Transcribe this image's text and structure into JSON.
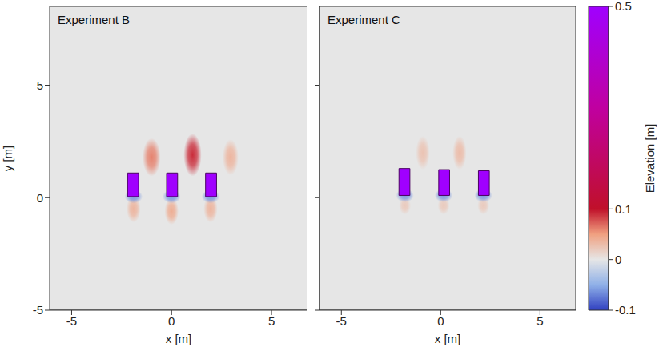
{
  "chart_data": [
    {
      "type": "heatmap",
      "title": "Experiment B",
      "x_label": "x [m]",
      "y_label": "y [m]",
      "xlim": [
        -6.1,
        6.8
      ],
      "ylim": [
        -5,
        8.5
      ],
      "xticks": [
        -5,
        0,
        5
      ],
      "yticks": [
        -5,
        0,
        5
      ],
      "base_elevation": 0,
      "structures": [
        {
          "x": [
            -2.2,
            -1.65
          ],
          "y": [
            0.05,
            1.1
          ],
          "elevation": 0.5
        },
        {
          "x": [
            -0.25,
            0.3
          ],
          "y": [
            0.05,
            1.1
          ],
          "elevation": 0.5
        },
        {
          "x": [
            1.7,
            2.25
          ],
          "y": [
            0.05,
            1.1
          ],
          "elevation": 0.5
        }
      ],
      "features": [
        {
          "x": -1.0,
          "y": 1.8,
          "rx": 0.45,
          "ry": 0.85,
          "elevation": 0.06
        },
        {
          "x": 1.05,
          "y": 1.9,
          "rx": 0.45,
          "ry": 0.95,
          "elevation": 0.09
        },
        {
          "x": 2.95,
          "y": 1.8,
          "rx": 0.4,
          "ry": 0.8,
          "elevation": 0.035
        },
        {
          "x": -1.9,
          "y": -0.5,
          "rx": 0.35,
          "ry": 0.6,
          "elevation": 0.035
        },
        {
          "x": 0.0,
          "y": -0.6,
          "rx": 0.35,
          "ry": 0.6,
          "elevation": 0.04
        },
        {
          "x": 1.95,
          "y": -0.5,
          "rx": 0.35,
          "ry": 0.6,
          "elevation": 0.035
        },
        {
          "x": -1.9,
          "y": 0.05,
          "rx": 0.45,
          "ry": 0.3,
          "elevation": -0.06
        },
        {
          "x": 0.0,
          "y": 0.05,
          "rx": 0.45,
          "ry": 0.3,
          "elevation": -0.06
        },
        {
          "x": 1.95,
          "y": 0.05,
          "rx": 0.45,
          "ry": 0.3,
          "elevation": -0.06
        }
      ]
    },
    {
      "type": "heatmap",
      "title": "Experiment C",
      "x_label": "x [m]",
      "xlim": [
        -6.1,
        6.8
      ],
      "ylim": [
        -5,
        8.5
      ],
      "xticks": [
        -5,
        0,
        5
      ],
      "yticks": [
        -5,
        0,
        5
      ],
      "tick_labels": "x",
      "base_elevation": 0,
      "structures": [
        {
          "x": [
            -2.1,
            -1.55
          ],
          "y": [
            0.1,
            1.3
          ],
          "elevation": 0.5
        },
        {
          "x": [
            -0.1,
            0.45
          ],
          "y": [
            0.1,
            1.25
          ],
          "elevation": 0.5
        },
        {
          "x": [
            1.9,
            2.45
          ],
          "y": [
            0.1,
            1.2
          ],
          "elevation": 0.5
        }
      ],
      "features": [
        {
          "x": -0.9,
          "y": 2.0,
          "rx": 0.35,
          "ry": 0.75,
          "elevation": 0.025
        },
        {
          "x": 0.95,
          "y": 2.0,
          "rx": 0.35,
          "ry": 0.75,
          "elevation": 0.03
        },
        {
          "x": -1.8,
          "y": -0.35,
          "rx": 0.3,
          "ry": 0.4,
          "elevation": 0.02
        },
        {
          "x": 0.15,
          "y": -0.35,
          "rx": 0.3,
          "ry": 0.4,
          "elevation": 0.02
        },
        {
          "x": 2.15,
          "y": -0.35,
          "rx": 0.3,
          "ry": 0.4,
          "elevation": 0.02
        },
        {
          "x": -1.8,
          "y": 0.1,
          "rx": 0.45,
          "ry": 0.3,
          "elevation": -0.06
        },
        {
          "x": 0.15,
          "y": 0.1,
          "rx": 0.45,
          "ry": 0.3,
          "elevation": -0.06
        },
        {
          "x": 2.15,
          "y": 0.1,
          "rx": 0.45,
          "ry": 0.3,
          "elevation": -0.06
        }
      ]
    },
    {
      "type": "colorbar",
      "y_label": "Elevation [m]",
      "ylim": [
        -0.1,
        0.5
      ],
      "yticks": [
        -0.1,
        0,
        0.1,
        0.5
      ],
      "stops": [
        {
          "value": -0.1,
          "color": "#3040c0"
        },
        {
          "value": -0.05,
          "color": "#8fb0e8"
        },
        {
          "value": 0,
          "color": "#e6e6e6"
        },
        {
          "value": 0.05,
          "color": "#f0a080"
        },
        {
          "value": 0.1,
          "color": "#c0102a"
        },
        {
          "value": 0.3,
          "color": "#c000a0"
        },
        {
          "value": 0.5,
          "color": "#a000ff"
        }
      ]
    }
  ]
}
